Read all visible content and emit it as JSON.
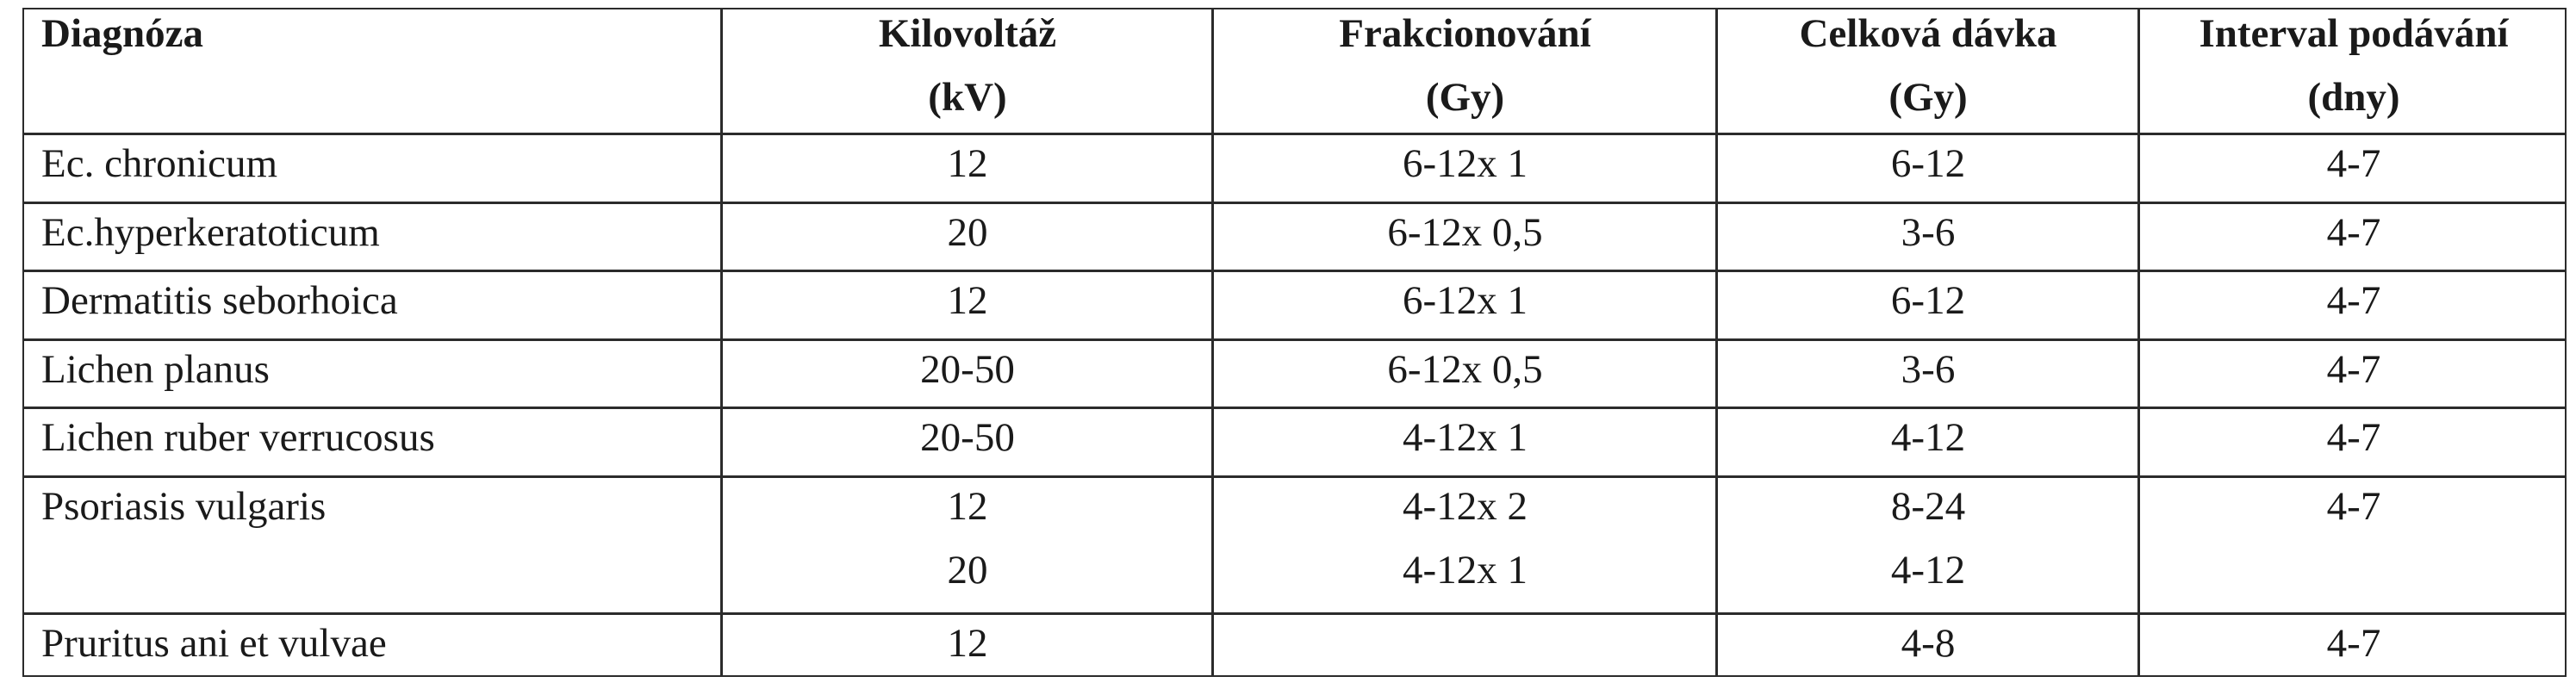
{
  "table": {
    "headers": [
      {
        "line1": "Diagnóza",
        "line2": ""
      },
      {
        "line1": "Kilovoltáž",
        "line2": "(kV)"
      },
      {
        "line1": "Frakcionování",
        "line2": "(Gy)"
      },
      {
        "line1": "Celková dávka",
        "line2": "(Gy)"
      },
      {
        "line1": "Interval  podávání",
        "line2": "(dny)"
      }
    ],
    "rows": [
      {
        "diagnosis": "Ec. chronicum",
        "kv": [
          "12"
        ],
        "fraction": [
          "6-12x 1"
        ],
        "total": [
          "6-12"
        ],
        "interval": "4-7"
      },
      {
        "diagnosis": "Ec.hyperkeratoticum",
        "kv": [
          "20"
        ],
        "fraction": [
          "6-12x 0,5"
        ],
        "total": [
          "3-6"
        ],
        "interval": "4-7"
      },
      {
        "diagnosis": "Dermatitis seborhoica",
        "kv": [
          "12"
        ],
        "fraction": [
          "6-12x 1"
        ],
        "total": [
          "6-12"
        ],
        "interval": "4-7"
      },
      {
        "diagnosis": "Lichen planus",
        "kv": [
          "20-50"
        ],
        "fraction": [
          "6-12x 0,5"
        ],
        "total": [
          "3-6"
        ],
        "interval": "4-7"
      },
      {
        "diagnosis": "Lichen ruber verrucosus",
        "kv": [
          "20-50"
        ],
        "fraction": [
          "4-12x 1"
        ],
        "total": [
          "4-12"
        ],
        "interval": "4-7"
      },
      {
        "diagnosis": "Psoriasis vulgaris",
        "kv": [
          "12",
          "20"
        ],
        "fraction": [
          "4-12x 2",
          "4-12x 1"
        ],
        "total": [
          "8-24",
          "4-12"
        ],
        "interval": "4-7"
      },
      {
        "diagnosis": "Pruritus ani et vulvae",
        "kv": [
          "12"
        ],
        "fraction": [
          ""
        ],
        "total": [
          "4-8"
        ],
        "interval": "4-7"
      }
    ]
  }
}
